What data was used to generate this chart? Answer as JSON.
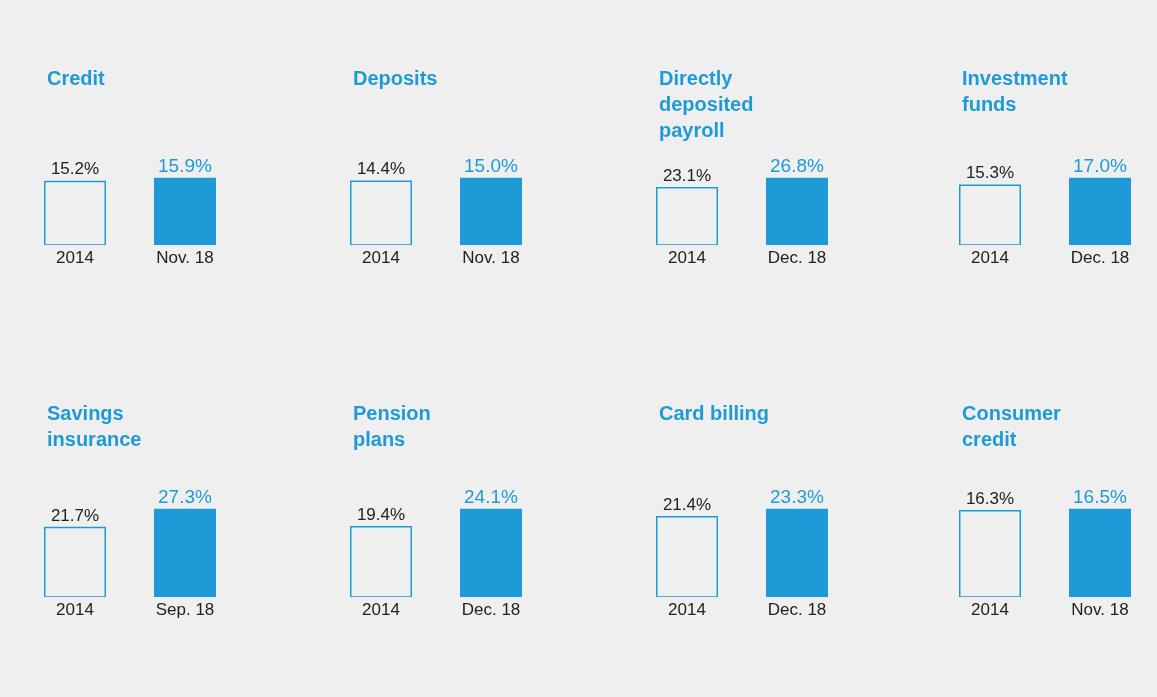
{
  "chart_data": [
    {
      "type": "bar",
      "title": "Credit",
      "categories": [
        "2014",
        "Nov. 18"
      ],
      "values": [
        15.2,
        15.9
      ],
      "value_labels": [
        "15.2%",
        "15.9%"
      ],
      "colors": [
        "#efefef",
        "#1e9bd7"
      ],
      "tick_labels": "x"
    },
    {
      "type": "bar",
      "title": "Deposits",
      "categories": [
        "2014",
        "Nov. 18"
      ],
      "values": [
        14.4,
        15.0
      ],
      "value_labels": [
        "14.4%",
        "15.0%"
      ],
      "colors": [
        "#efefef",
        "#1e9bd7"
      ],
      "tick_labels": "x"
    },
    {
      "type": "bar",
      "title": "Directly\ndeposited\npayroll",
      "categories": [
        "2014",
        "Dec. 18"
      ],
      "values": [
        23.1,
        26.8
      ],
      "value_labels": [
        "23.1%",
        "26.8%"
      ],
      "colors": [
        "#efefef",
        "#1e9bd7"
      ],
      "tick_labels": "x"
    },
    {
      "type": "bar",
      "title": "Investment\nfunds",
      "categories": [
        "2014",
        "Dec. 18"
      ],
      "values": [
        15.3,
        17.0
      ],
      "value_labels": [
        "15.3%",
        "17.0%"
      ],
      "colors": [
        "#efefef",
        "#1e9bd7"
      ],
      "tick_labels": "x"
    },
    {
      "type": "bar",
      "title": "Savings\ninsurance",
      "categories": [
        "2014",
        "Sep. 18"
      ],
      "values": [
        21.7,
        27.3
      ],
      "value_labels": [
        "21.7%",
        "27.3%"
      ],
      "colors": [
        "#efefef",
        "#1e9bd7"
      ],
      "tick_labels": "x"
    },
    {
      "type": "bar",
      "title": "Pension\nplans",
      "categories": [
        "2014",
        "Dec. 18"
      ],
      "values": [
        19.4,
        24.1
      ],
      "value_labels": [
        "19.4%",
        "24.1%"
      ],
      "colors": [
        "#efefef",
        "#1e9bd7"
      ],
      "tick_labels": "x"
    },
    {
      "type": "bar",
      "title": "Card billing",
      "categories": [
        "2014",
        "Dec. 18"
      ],
      "values": [
        21.4,
        23.3
      ],
      "value_labels": [
        "21.4%",
        "23.3%"
      ],
      "colors": [
        "#efefef",
        "#1e9bd7"
      ],
      "tick_labels": "x"
    },
    {
      "type": "bar",
      "title": "Consumer\ncredit",
      "categories": [
        "2014",
        "Nov. 18"
      ],
      "values": [
        16.3,
        16.5
      ],
      "value_labels": [
        "16.3%",
        "16.5%"
      ],
      "colors": [
        "#efefef",
        "#1e9bd7"
      ],
      "tick_labels": "x"
    }
  ]
}
